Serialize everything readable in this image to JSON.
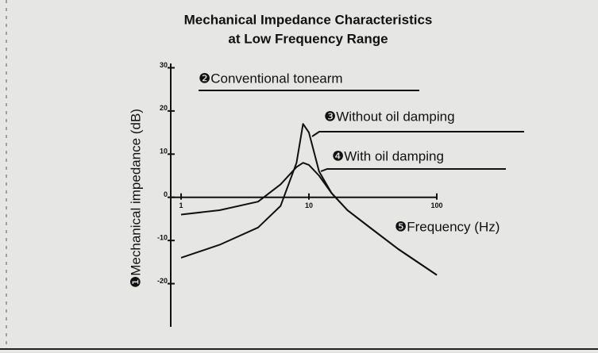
{
  "chart_data": {
    "type": "line",
    "title": "Mechanical Impedance Characteristics",
    "subtitle": "at Low Frequency Range",
    "y_label": "❶Mechanical impedance (dB)",
    "x_label": "❺Frequency (Hz)",
    "annotations": [
      "❷Conventional tonearm"
    ],
    "log_x": true,
    "x": [
      1,
      2,
      4,
      6,
      8,
      9,
      10,
      12,
      15,
      20,
      30,
      50,
      100
    ],
    "series": [
      {
        "name": "❸Without oil damping",
        "color": "#111111",
        "values": [
          -14,
          -11,
          -7,
          -2,
          8,
          17,
          15,
          6,
          1,
          -3,
          -7,
          -12,
          -18
        ]
      },
      {
        "name": "❹With oil damping",
        "color": "#111111",
        "values": [
          -4,
          -3,
          -1,
          3,
          7,
          8,
          7.5,
          5,
          1,
          -3,
          -7,
          -12,
          -18
        ]
      }
    ],
    "xlim": [
      0.83,
      100
    ],
    "xticks": [
      1,
      10,
      100
    ],
    "ylim": [
      -30,
      31
    ],
    "yticks": [
      -20,
      -10,
      0,
      10,
      20,
      30
    ]
  }
}
